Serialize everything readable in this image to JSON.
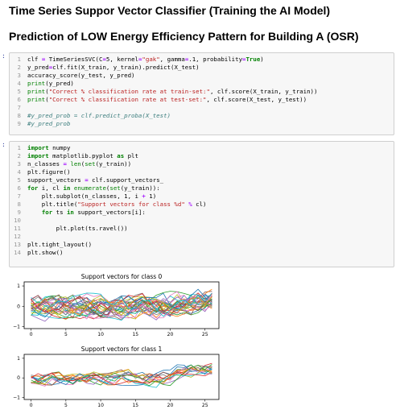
{
  "headings": {
    "title": "Time Series Suppor Vector Classifier (Training the AI Model)",
    "subtitle": "Prediction of LOW Energy Efficiency Pattern for Building A (OSR)"
  },
  "cell1": {
    "prompt": ":",
    "lines": [
      {
        "n": "1",
        "t": "clf = TimeSeriesSVC(C=5, kernel=\"gak\", gamma=.1, probability=True)"
      },
      {
        "n": "2",
        "t": "y_pred=clf.fit(X_train, y_train).predict(X_test)"
      },
      {
        "n": "3",
        "t": "accuracy_score(y_test, y_pred)"
      },
      {
        "n": "4",
        "t": "print(y_pred)"
      },
      {
        "n": "5",
        "t": "print(\"Correct % classification rate at train-set:\", clf.score(X_train, y_train))"
      },
      {
        "n": "6",
        "t": "print(\"Correct % classification rate at test-set:\", clf.score(X_test, y_test))"
      },
      {
        "n": "7",
        "t": ""
      },
      {
        "n": "8",
        "t": "#y_pred_prob = clf.predict_proba(X_test)"
      },
      {
        "n": "9",
        "t": "#y_pred_prob"
      }
    ]
  },
  "cell2": {
    "prompt": ":",
    "lines": [
      {
        "n": "1",
        "t": "import numpy"
      },
      {
        "n": "2",
        "t": "import matplotlib.pyplot as plt"
      },
      {
        "n": "3",
        "t": "n_classes = len(set(y_train))"
      },
      {
        "n": "4",
        "t": "plt.figure()"
      },
      {
        "n": "5",
        "t": "support_vectors = clf.support_vectors_"
      },
      {
        "n": "6",
        "t": "for i, cl in enumerate(set(y_train)):"
      },
      {
        "n": "7",
        "t": "    plt.subplot(n_classes, 1, i + 1)"
      },
      {
        "n": "8",
        "t": "    plt.title(\"Support vectors for class %d\" % cl)"
      },
      {
        "n": "9",
        "t": "    for ts in support_vectors[i]:"
      },
      {
        "n": "10",
        "t": ""
      },
      {
        "n": "11",
        "t": "        plt.plot(ts.ravel())"
      },
      {
        "n": "12",
        "t": ""
      },
      {
        "n": "13",
        "t": "plt.tight_layout()"
      },
      {
        "n": "14",
        "t": "plt.show()"
      }
    ]
  },
  "chart_data": [
    {
      "type": "line",
      "title": "Support vectors for class 0",
      "xlim": [
        -1,
        27
      ],
      "ylim": [
        -1.1,
        1.2
      ],
      "xticks": [
        0,
        5,
        10,
        15,
        20,
        25
      ],
      "yticks": [
        -1,
        0,
        1
      ],
      "n_series": 30,
      "series_length": 27,
      "note_values": "approximate shape: flat band near 0 with noise, rising toward ~0.4 after x=20"
    },
    {
      "type": "line",
      "title": "Support vectors for class 1",
      "xlim": [
        -1,
        27
      ],
      "ylim": [
        -1.1,
        1.2
      ],
      "xticks": [
        0,
        5,
        10,
        15,
        20,
        25
      ],
      "yticks": [
        -1,
        0,
        1
      ],
      "n_series": 14,
      "series_length": 27
    }
  ],
  "colors": {
    "prompt": "#303f9f",
    "cycle": [
      "#1f77b4",
      "#ff7f0e",
      "#2ca02c",
      "#d62728",
      "#9467bd",
      "#8c564b",
      "#e377c2",
      "#7f7f7f",
      "#bcbd22",
      "#17becf"
    ]
  }
}
